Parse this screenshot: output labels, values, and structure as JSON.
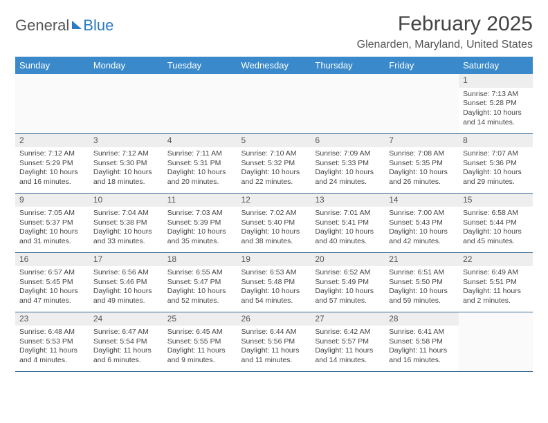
{
  "logo": {
    "text_general": "General",
    "text_blue": "Blue"
  },
  "title": "February 2025",
  "subtitle": "Glenarden, Maryland, United States",
  "colors": {
    "header_bg": "#3a8acb",
    "header_text": "#ffffff",
    "daynum_bg": "#eeeeee",
    "border": "#3a6a95",
    "logo_blue": "#2a7bbf",
    "body_text": "#444444"
  },
  "typography": {
    "title_fontsize": 30,
    "subtitle_fontsize": 16,
    "dayhead_fontsize": 13,
    "cell_fontsize": 10.5
  },
  "day_headers": [
    "Sunday",
    "Monday",
    "Tuesday",
    "Wednesday",
    "Thursday",
    "Friday",
    "Saturday"
  ],
  "weeks": [
    [
      {
        "num": "",
        "sunrise": "",
        "sunset": "",
        "daylight": ""
      },
      {
        "num": "",
        "sunrise": "",
        "sunset": "",
        "daylight": ""
      },
      {
        "num": "",
        "sunrise": "",
        "sunset": "",
        "daylight": ""
      },
      {
        "num": "",
        "sunrise": "",
        "sunset": "",
        "daylight": ""
      },
      {
        "num": "",
        "sunrise": "",
        "sunset": "",
        "daylight": ""
      },
      {
        "num": "",
        "sunrise": "",
        "sunset": "",
        "daylight": ""
      },
      {
        "num": "1",
        "sunrise": "Sunrise: 7:13 AM",
        "sunset": "Sunset: 5:28 PM",
        "daylight": "Daylight: 10 hours and 14 minutes."
      }
    ],
    [
      {
        "num": "2",
        "sunrise": "Sunrise: 7:12 AM",
        "sunset": "Sunset: 5:29 PM",
        "daylight": "Daylight: 10 hours and 16 minutes."
      },
      {
        "num": "3",
        "sunrise": "Sunrise: 7:12 AM",
        "sunset": "Sunset: 5:30 PM",
        "daylight": "Daylight: 10 hours and 18 minutes."
      },
      {
        "num": "4",
        "sunrise": "Sunrise: 7:11 AM",
        "sunset": "Sunset: 5:31 PM",
        "daylight": "Daylight: 10 hours and 20 minutes."
      },
      {
        "num": "5",
        "sunrise": "Sunrise: 7:10 AM",
        "sunset": "Sunset: 5:32 PM",
        "daylight": "Daylight: 10 hours and 22 minutes."
      },
      {
        "num": "6",
        "sunrise": "Sunrise: 7:09 AM",
        "sunset": "Sunset: 5:33 PM",
        "daylight": "Daylight: 10 hours and 24 minutes."
      },
      {
        "num": "7",
        "sunrise": "Sunrise: 7:08 AM",
        "sunset": "Sunset: 5:35 PM",
        "daylight": "Daylight: 10 hours and 26 minutes."
      },
      {
        "num": "8",
        "sunrise": "Sunrise: 7:07 AM",
        "sunset": "Sunset: 5:36 PM",
        "daylight": "Daylight: 10 hours and 29 minutes."
      }
    ],
    [
      {
        "num": "9",
        "sunrise": "Sunrise: 7:05 AM",
        "sunset": "Sunset: 5:37 PM",
        "daylight": "Daylight: 10 hours and 31 minutes."
      },
      {
        "num": "10",
        "sunrise": "Sunrise: 7:04 AM",
        "sunset": "Sunset: 5:38 PM",
        "daylight": "Daylight: 10 hours and 33 minutes."
      },
      {
        "num": "11",
        "sunrise": "Sunrise: 7:03 AM",
        "sunset": "Sunset: 5:39 PM",
        "daylight": "Daylight: 10 hours and 35 minutes."
      },
      {
        "num": "12",
        "sunrise": "Sunrise: 7:02 AM",
        "sunset": "Sunset: 5:40 PM",
        "daylight": "Daylight: 10 hours and 38 minutes."
      },
      {
        "num": "13",
        "sunrise": "Sunrise: 7:01 AM",
        "sunset": "Sunset: 5:41 PM",
        "daylight": "Daylight: 10 hours and 40 minutes."
      },
      {
        "num": "14",
        "sunrise": "Sunrise: 7:00 AM",
        "sunset": "Sunset: 5:43 PM",
        "daylight": "Daylight: 10 hours and 42 minutes."
      },
      {
        "num": "15",
        "sunrise": "Sunrise: 6:58 AM",
        "sunset": "Sunset: 5:44 PM",
        "daylight": "Daylight: 10 hours and 45 minutes."
      }
    ],
    [
      {
        "num": "16",
        "sunrise": "Sunrise: 6:57 AM",
        "sunset": "Sunset: 5:45 PM",
        "daylight": "Daylight: 10 hours and 47 minutes."
      },
      {
        "num": "17",
        "sunrise": "Sunrise: 6:56 AM",
        "sunset": "Sunset: 5:46 PM",
        "daylight": "Daylight: 10 hours and 49 minutes."
      },
      {
        "num": "18",
        "sunrise": "Sunrise: 6:55 AM",
        "sunset": "Sunset: 5:47 PM",
        "daylight": "Daylight: 10 hours and 52 minutes."
      },
      {
        "num": "19",
        "sunrise": "Sunrise: 6:53 AM",
        "sunset": "Sunset: 5:48 PM",
        "daylight": "Daylight: 10 hours and 54 minutes."
      },
      {
        "num": "20",
        "sunrise": "Sunrise: 6:52 AM",
        "sunset": "Sunset: 5:49 PM",
        "daylight": "Daylight: 10 hours and 57 minutes."
      },
      {
        "num": "21",
        "sunrise": "Sunrise: 6:51 AM",
        "sunset": "Sunset: 5:50 PM",
        "daylight": "Daylight: 10 hours and 59 minutes."
      },
      {
        "num": "22",
        "sunrise": "Sunrise: 6:49 AM",
        "sunset": "Sunset: 5:51 PM",
        "daylight": "Daylight: 11 hours and 2 minutes."
      }
    ],
    [
      {
        "num": "23",
        "sunrise": "Sunrise: 6:48 AM",
        "sunset": "Sunset: 5:53 PM",
        "daylight": "Daylight: 11 hours and 4 minutes."
      },
      {
        "num": "24",
        "sunrise": "Sunrise: 6:47 AM",
        "sunset": "Sunset: 5:54 PM",
        "daylight": "Daylight: 11 hours and 6 minutes."
      },
      {
        "num": "25",
        "sunrise": "Sunrise: 6:45 AM",
        "sunset": "Sunset: 5:55 PM",
        "daylight": "Daylight: 11 hours and 9 minutes."
      },
      {
        "num": "26",
        "sunrise": "Sunrise: 6:44 AM",
        "sunset": "Sunset: 5:56 PM",
        "daylight": "Daylight: 11 hours and 11 minutes."
      },
      {
        "num": "27",
        "sunrise": "Sunrise: 6:42 AM",
        "sunset": "Sunset: 5:57 PM",
        "daylight": "Daylight: 11 hours and 14 minutes."
      },
      {
        "num": "28",
        "sunrise": "Sunrise: 6:41 AM",
        "sunset": "Sunset: 5:58 PM",
        "daylight": "Daylight: 11 hours and 16 minutes."
      },
      {
        "num": "",
        "sunrise": "",
        "sunset": "",
        "daylight": ""
      }
    ]
  ]
}
